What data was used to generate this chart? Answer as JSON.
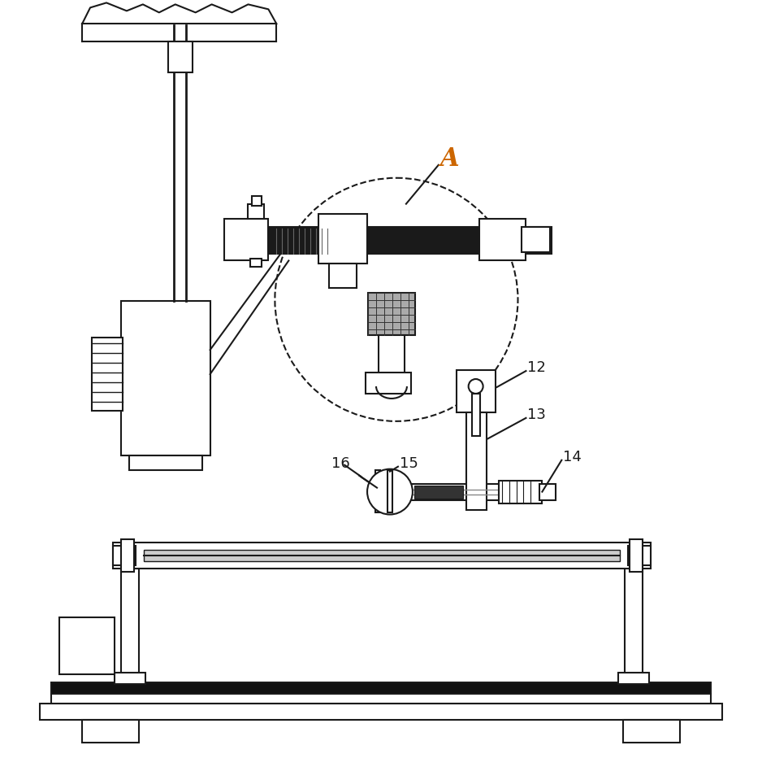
{
  "bg_color": "#ffffff",
  "lc": "#1a1a1a",
  "label_A_color": "#cc6600",
  "lw": 1.5,
  "figsize": [
    9.38,
    9.43
  ],
  "dpi": 100
}
